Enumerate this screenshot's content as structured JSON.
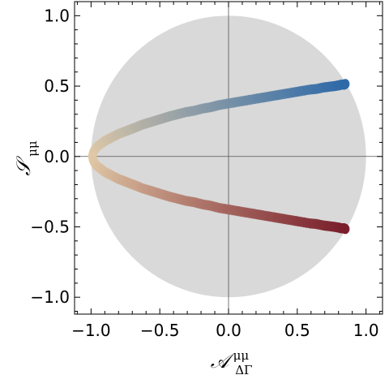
{
  "chart_data": {
    "type": "scatter",
    "title": "",
    "xlabel": {
      "main": "𝒜",
      "superscript": "μμ",
      "subscript": "ΔΓ"
    },
    "ylabel": {
      "main": "𝒮",
      "subscript": "μμ"
    },
    "xlim": [
      -1.12,
      1.12
    ],
    "ylim": [
      -1.12,
      1.1
    ],
    "grid": false,
    "legend": "none",
    "xticks": [
      -1.0,
      -0.5,
      0.0,
      0.5,
      1.0
    ],
    "xtick_labels": [
      "−1.0",
      "−0.5",
      "0.0",
      "0.5",
      "1.0"
    ],
    "yticks": [
      -1.0,
      -0.5,
      0.0,
      0.5,
      1.0
    ],
    "ytick_labels": [
      "−1.0",
      "−0.5",
      "0.0",
      "0.5",
      "1.0"
    ],
    "zero_lines": {
      "x": 0.0,
      "y": 0.0
    },
    "region": {
      "shape": "unit-disk",
      "center": [
        0,
        0
      ],
      "radius": 1.0,
      "color": "#d9d9d9"
    },
    "series": [
      {
        "branch": "upper",
        "color_start": "#e0c9a6",
        "color_end": "#2f6aa8",
        "x": [
          -0.99,
          -0.985,
          -0.975,
          -0.96,
          -0.94,
          -0.92,
          -0.9,
          -0.87,
          -0.84,
          -0.8,
          -0.76,
          -0.72,
          -0.68,
          -0.63,
          -0.58,
          -0.53,
          -0.48,
          -0.43,
          -0.37,
          -0.31,
          -0.25,
          -0.19,
          -0.13,
          -0.07,
          -0.01,
          0.05,
          0.11,
          0.17,
          0.23,
          0.29,
          0.35,
          0.41,
          0.47,
          0.53,
          0.59,
          0.64,
          0.69,
          0.73,
          0.77,
          0.8,
          0.82,
          0.84,
          0.85
        ],
        "y": [
          0.0,
          0.025,
          0.045,
          0.065,
          0.08,
          0.095,
          0.11,
          0.125,
          0.14,
          0.16,
          0.175,
          0.19,
          0.205,
          0.225,
          0.24,
          0.255,
          0.27,
          0.285,
          0.3,
          0.315,
          0.325,
          0.34,
          0.35,
          0.365,
          0.375,
          0.385,
          0.395,
          0.405,
          0.415,
          0.425,
          0.435,
          0.445,
          0.455,
          0.465,
          0.475,
          0.48,
          0.49,
          0.495,
          0.5,
          0.505,
          0.51,
          0.51,
          0.515
        ]
      },
      {
        "branch": "lower",
        "color_start": "#e0c9a6",
        "color_end": "#7a1f2c",
        "x": [
          -0.99,
          -0.985,
          -0.975,
          -0.96,
          -0.94,
          -0.92,
          -0.9,
          -0.87,
          -0.84,
          -0.8,
          -0.76,
          -0.72,
          -0.68,
          -0.63,
          -0.58,
          -0.53,
          -0.48,
          -0.43,
          -0.37,
          -0.31,
          -0.25,
          -0.19,
          -0.13,
          -0.07,
          -0.01,
          0.05,
          0.11,
          0.17,
          0.23,
          0.29,
          0.35,
          0.41,
          0.47,
          0.53,
          0.59,
          0.64,
          0.69,
          0.73,
          0.77,
          0.8,
          0.82,
          0.84,
          0.85
        ],
        "y": [
          -0.0,
          -0.025,
          -0.045,
          -0.065,
          -0.08,
          -0.095,
          -0.11,
          -0.125,
          -0.14,
          -0.16,
          -0.175,
          -0.19,
          -0.205,
          -0.225,
          -0.24,
          -0.255,
          -0.27,
          -0.285,
          -0.3,
          -0.315,
          -0.325,
          -0.34,
          -0.35,
          -0.365,
          -0.375,
          -0.385,
          -0.395,
          -0.405,
          -0.415,
          -0.425,
          -0.435,
          -0.445,
          -0.455,
          -0.465,
          -0.475,
          -0.48,
          -0.49,
          -0.495,
          -0.5,
          -0.505,
          -0.51,
          -0.51,
          -0.515
        ]
      }
    ]
  }
}
